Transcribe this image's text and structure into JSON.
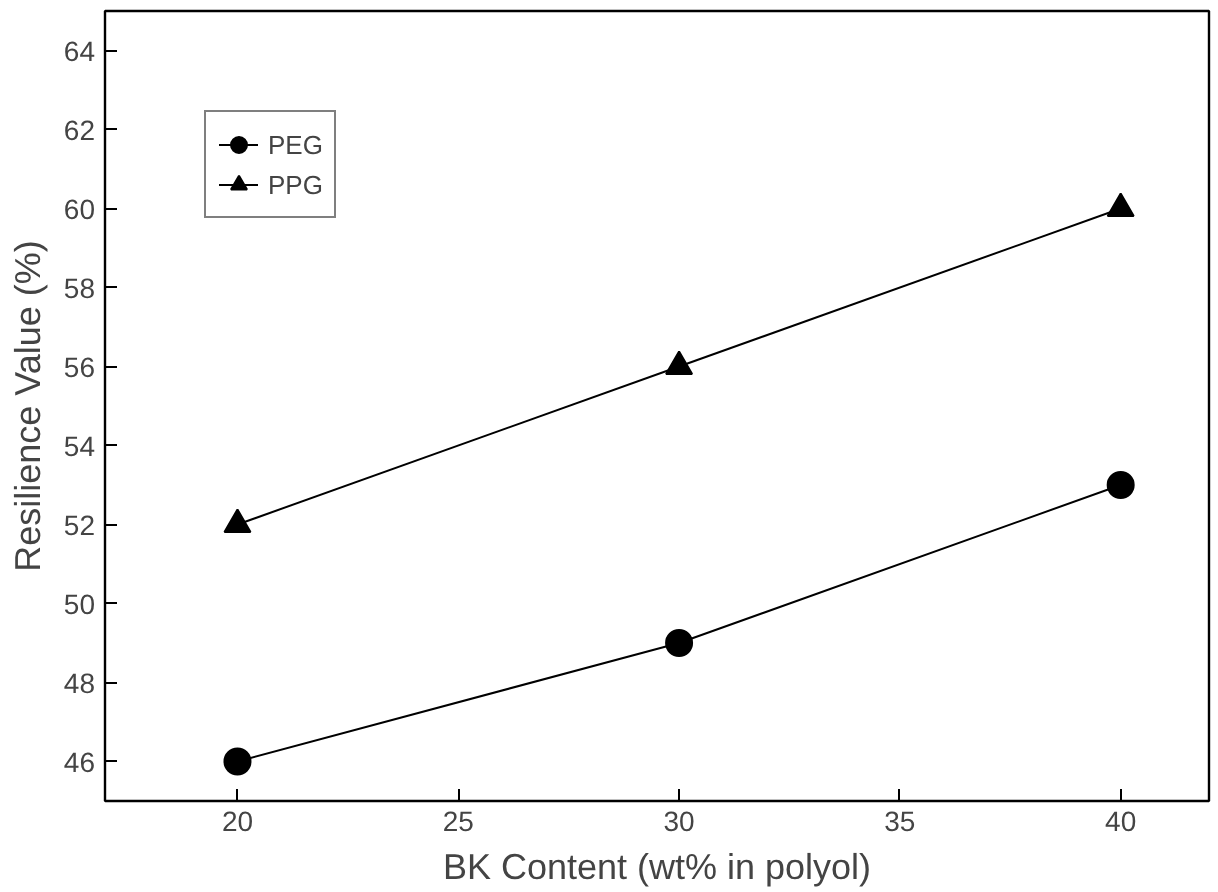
{
  "chart_data": {
    "type": "line",
    "xlabel": "BK Content (wt% in polyol)",
    "ylabel": "Resilience Value (%)",
    "x": [
      20,
      30,
      40
    ],
    "series": [
      {
        "name": "PEG",
        "color": "#000000",
        "values": [
          46,
          49,
          53
        ],
        "marker": "circle"
      },
      {
        "name": "PPG",
        "color": "#000000",
        "values": [
          52,
          56,
          60
        ],
        "marker": "triangle"
      }
    ],
    "xlim": [
      17,
      42
    ],
    "xticks": [
      20,
      25,
      30,
      35,
      40
    ],
    "ylim": [
      45,
      65
    ],
    "yticks": [
      46,
      48,
      50,
      52,
      54,
      56,
      58,
      60,
      62,
      64
    ],
    "grid": false,
    "legend": "top left",
    "line_style": "solid"
  }
}
